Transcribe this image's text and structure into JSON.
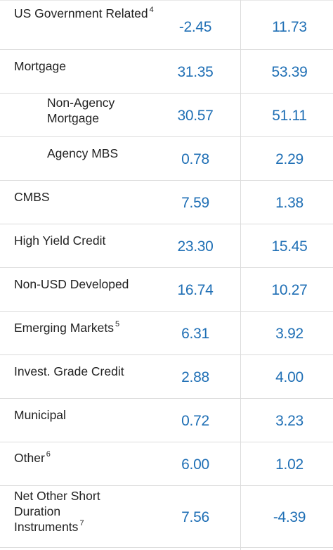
{
  "rows": [
    {
      "label": "US Government Related",
      "sup": "4",
      "col1": "-2.45",
      "col2": "11.73"
    },
    {
      "label": "Mortgage",
      "sup": "",
      "col1": "31.35",
      "col2": "53.39"
    },
    {
      "label": "Non-Agency Mortgage",
      "sup": "",
      "col1": "30.57",
      "col2": "51.11"
    },
    {
      "label": "Agency MBS",
      "sup": "",
      "col1": "0.78",
      "col2": "2.29"
    },
    {
      "label": "CMBS",
      "sup": "",
      "col1": "7.59",
      "col2": "1.38"
    },
    {
      "label": "High Yield Credit",
      "sup": "",
      "col1": "23.30",
      "col2": "15.45"
    },
    {
      "label": "Non-USD Developed",
      "sup": "",
      "col1": "16.74",
      "col2": "10.27"
    },
    {
      "label": "Emerging Markets",
      "sup": "5",
      "col1": "6.31",
      "col2": "3.92"
    },
    {
      "label": "Invest. Grade Credit",
      "sup": "",
      "col1": "2.88",
      "col2": "4.00"
    },
    {
      "label": "Municipal",
      "sup": "",
      "col1": "0.72",
      "col2": "3.23"
    },
    {
      "label": "Other",
      "sup": "6",
      "col1": "6.00",
      "col2": "1.02"
    },
    {
      "label": "Net Other Short Duration Instruments",
      "sup": "7",
      "col1": "7.56",
      "col2": "-4.39"
    }
  ]
}
